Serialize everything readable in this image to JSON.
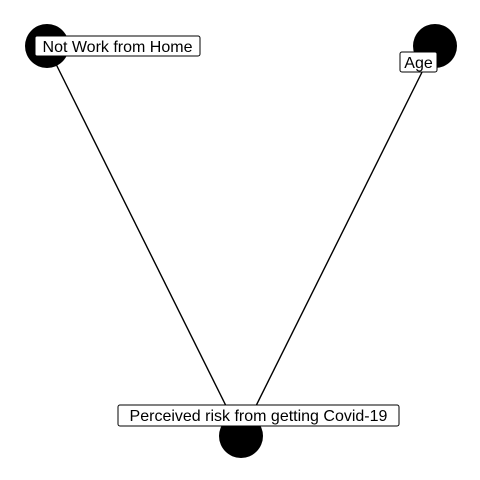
{
  "graph": {
    "nodes": [
      {
        "id": "not-work-from-home",
        "label": "Not Work from Home"
      },
      {
        "id": "age",
        "label": "Age"
      },
      {
        "id": "perceived-risk",
        "label": "Perceived risk from getting Covid-19"
      }
    ],
    "edges": [
      {
        "from": "not-work-from-home",
        "to": "perceived-risk"
      },
      {
        "from": "age",
        "to": "perceived-risk"
      }
    ],
    "colors": {
      "node_fill": "#000000",
      "edge": "#000000",
      "label_box_fill": "#ffffff",
      "label_box_stroke": "#000000",
      "label_text": "#000000",
      "background": "#ffffff"
    }
  }
}
